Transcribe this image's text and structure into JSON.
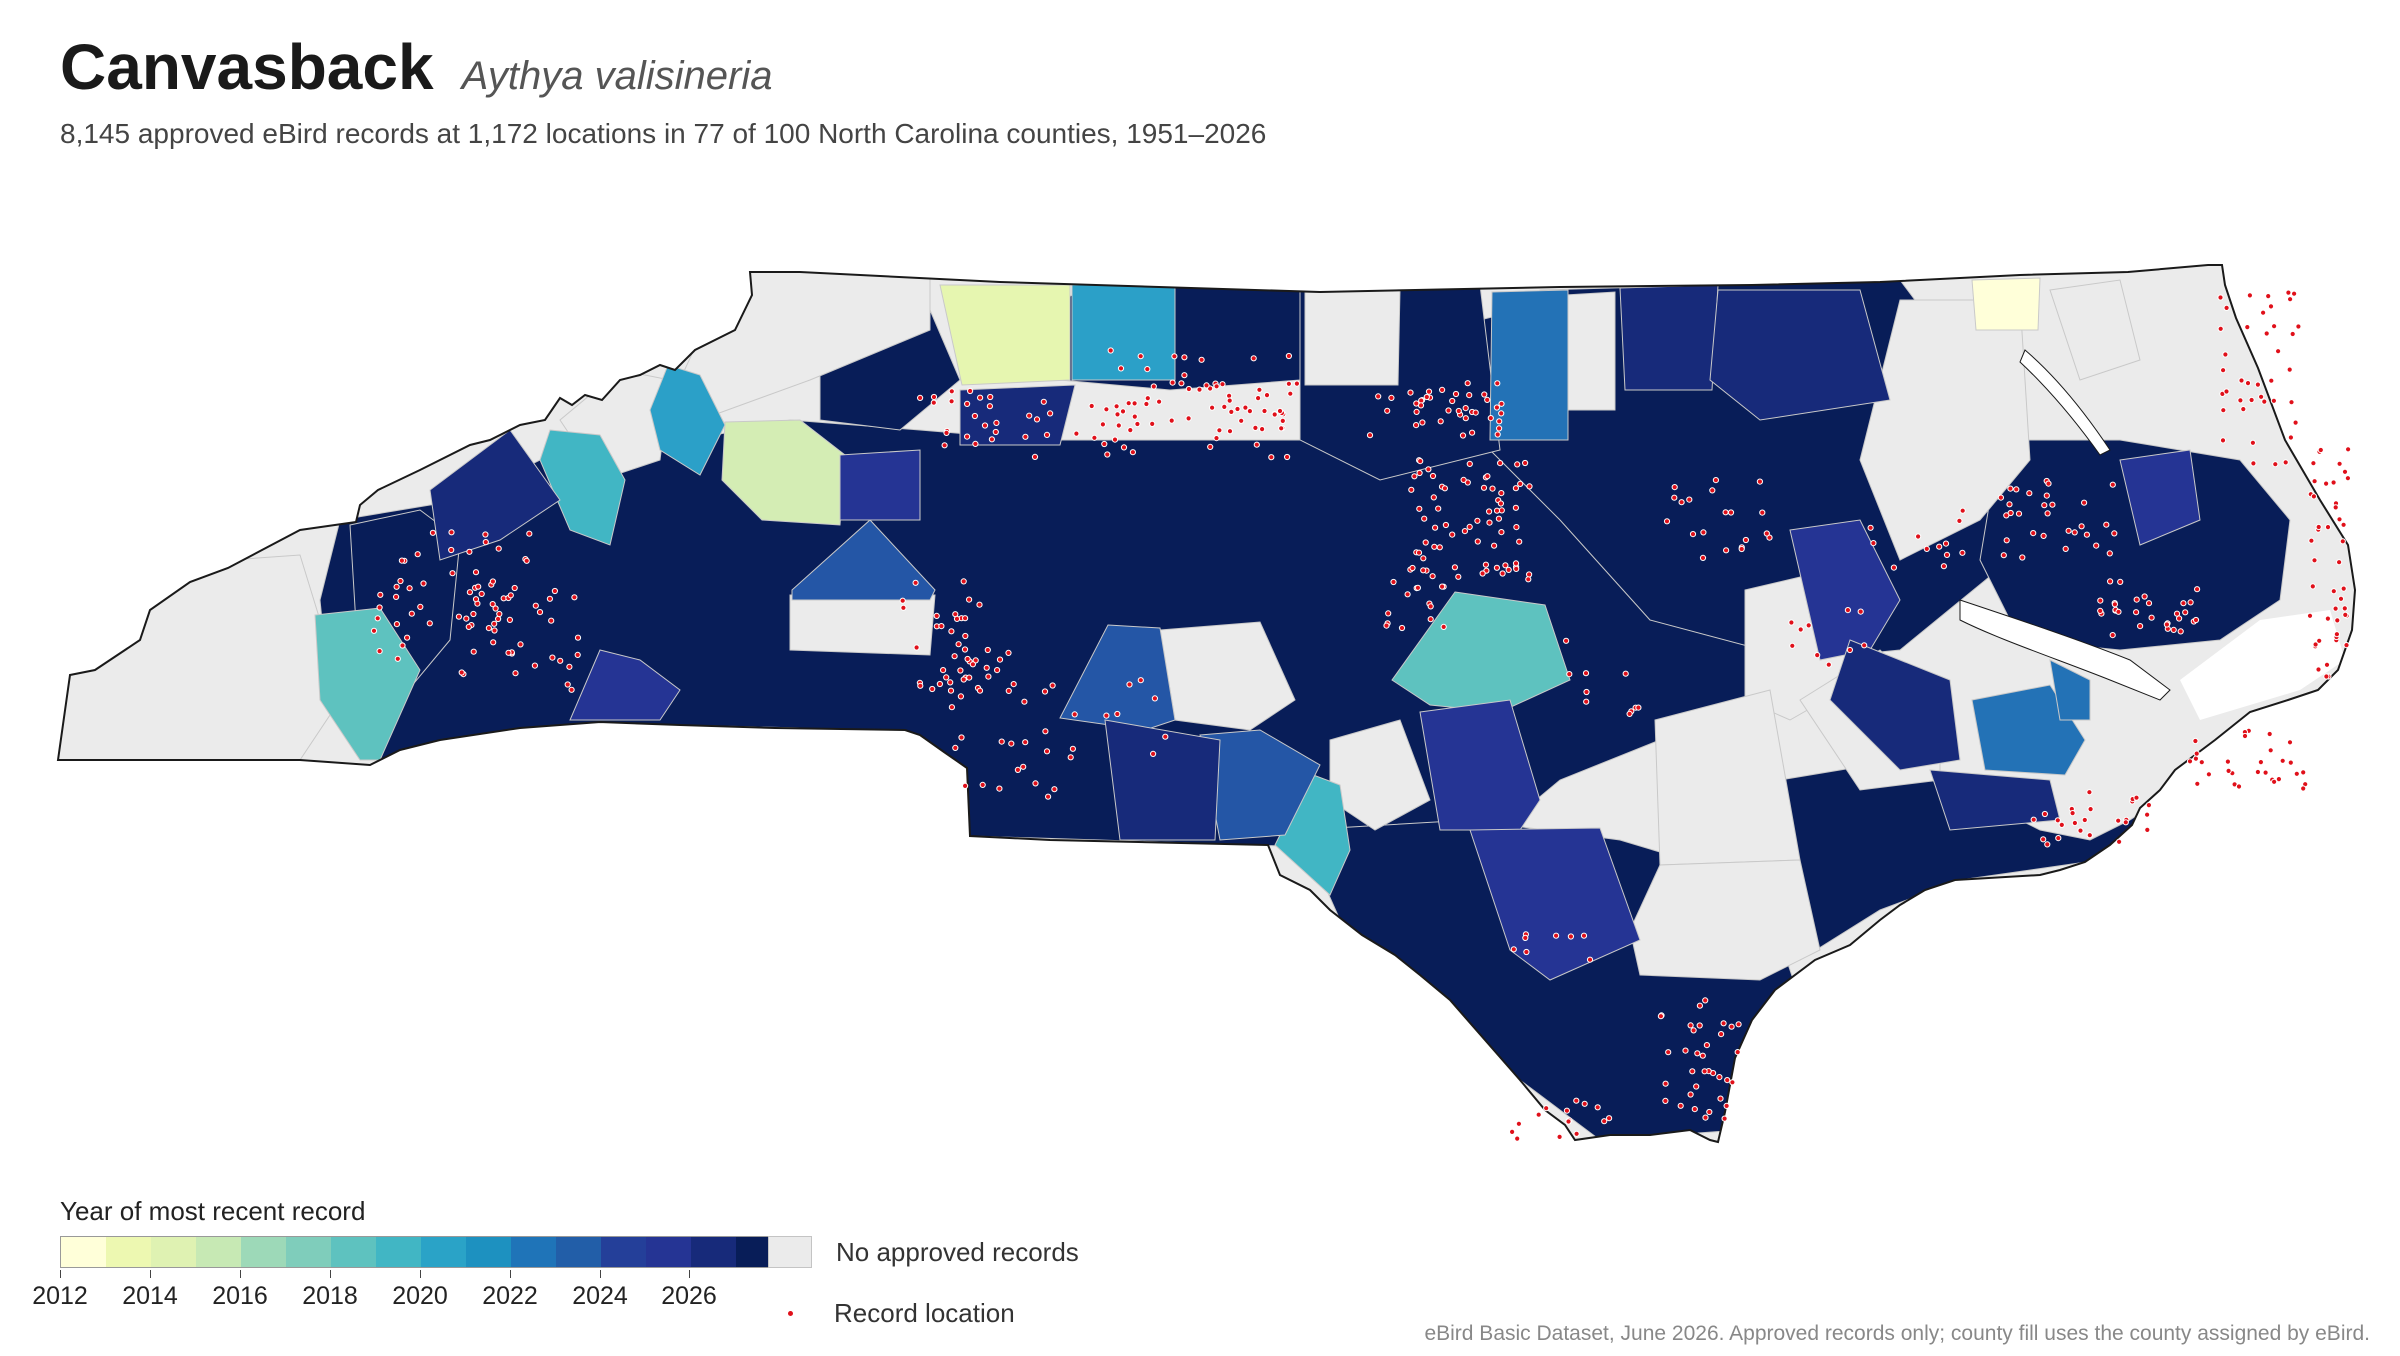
{
  "header": {
    "common_name": "Canvasback",
    "scientific_name": "Aythya valisineria",
    "subtitle": "8,145 approved eBird records at 1,172 locations in 77 of 100 North Carolina counties, 1951–2026"
  },
  "legend": {
    "title": "Year of most recent record",
    "ramp_colors": [
      "#ffffd9",
      "#edf8b1",
      "#dff2b2",
      "#c7e9b4",
      "#9dd9b8",
      "#7fcdbb",
      "#5ec2bf",
      "#41b6c4",
      "#2aa3c7",
      "#1d91c0",
      "#1f74b8",
      "#225ea8",
      "#243f99",
      "#253494",
      "#172a7a",
      "#081d58"
    ],
    "ticks": [
      "2012",
      "2014",
      "2016",
      "2018",
      "2020",
      "2022",
      "2024",
      "2026"
    ],
    "no_records_label": "No approved records",
    "record_label": "Record location"
  },
  "colors": {
    "no_records": "#ebebeb",
    "record_dot": "#e0101a",
    "y2026": "#081d58",
    "y2025": "#172a7a",
    "y2024": "#253494",
    "y2023": "#2456a6",
    "y2022": "#2372b6",
    "y2020": "#2ba0c8",
    "y2019": "#41b6c4",
    "y2018": "#5ec2bf",
    "y2015": "#d4edb4",
    "y2014": "#e6f6b0",
    "y2012": "#ffffd9"
  },
  "source_note": "eBird Basic Dataset, June 2026. Approved records only; county fill uses the county assigned by eBird."
}
